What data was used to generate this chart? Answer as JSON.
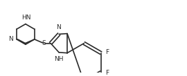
{
  "bg_color": "#ffffff",
  "line_color": "#2a2a2a",
  "text_color": "#2a2a2a",
  "lw": 1.2,
  "font_size": 6.5,
  "fig_width": 2.7,
  "fig_height": 1.1,
  "dpi": 100,
  "xlim": [
    0,
    27
  ],
  "ylim": [
    0,
    11
  ]
}
